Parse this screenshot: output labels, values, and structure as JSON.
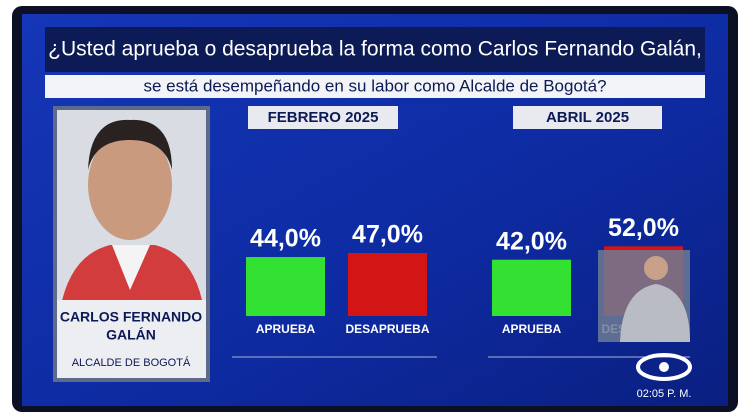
{
  "question": [
    "¿Usted aprueba o desaprueba la forma como Carlos Fernando Galán,",
    "se está desempeñando en su labor como Alcalde de Bogotá?"
  ],
  "person": {
    "name": [
      "CARLOS FERNANDO",
      "GALÁN"
    ],
    "role": "ALCALDE DE BOGOTÁ"
  },
  "clock": "02:05 P. M.",
  "chart_data": [
    {
      "type": "bar",
      "title": "FEBRERO 2025",
      "categories": [
        "APRUEBA",
        "DESAPRUEBA"
      ],
      "values": [
        44.0,
        47.0
      ],
      "value_labels": [
        "44,0%",
        "47,0%"
      ],
      "colors": [
        "#33e133",
        "#d41515"
      ]
    },
    {
      "type": "bar",
      "title": "ABRIL 2025",
      "categories": [
        "APRUEBA",
        "DESAPRUEBA"
      ],
      "values": [
        42.0,
        52.0
      ],
      "value_labels": [
        "42,0%",
        "52,0%"
      ],
      "colors": [
        "#33e133",
        "#d41515"
      ]
    }
  ]
}
